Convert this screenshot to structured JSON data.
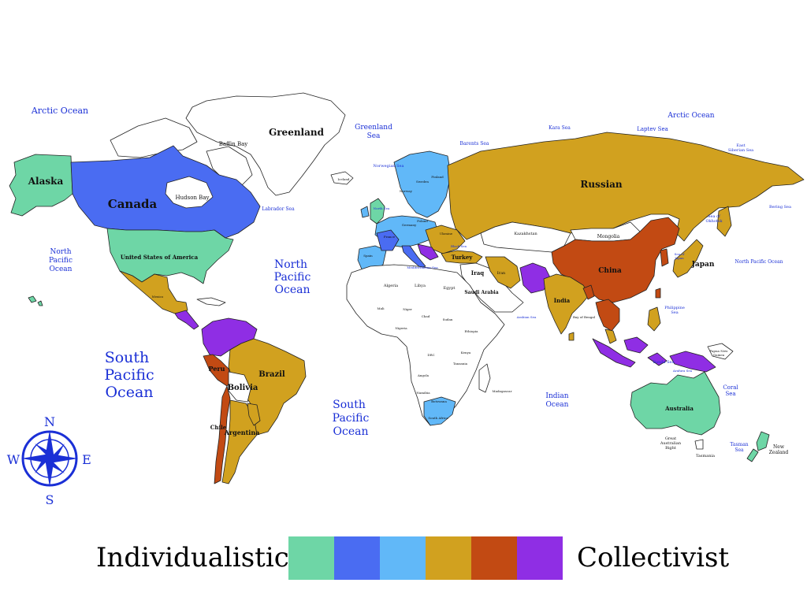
{
  "colors": {
    "individualistic_1": "#6ed6a6",
    "individualistic_2": "#4a6cf2",
    "individualistic_3": "#61b8f8",
    "collectivist_1": "#d1a11f",
    "collectivist_2": "#c24a13",
    "collectivist_3": "#8f2ee4",
    "border": "#222222",
    "ocean_text": "#1a2fd6",
    "unclassified": "#ffffff"
  },
  "legend": {
    "left_label": "Individualistic",
    "right_label": "Collectivist",
    "scale_colors": [
      "#6ed6a6",
      "#4a6cf2",
      "#61b8f8",
      "#d1a11f",
      "#c24a13",
      "#8f2ee4"
    ]
  },
  "compass": {
    "n": "N",
    "s": "S",
    "e": "E",
    "w": "W"
  },
  "oceans": {
    "arctic_left": "Arctic Ocean",
    "arctic_right": "Arctic Ocean",
    "north_pacific_left": [
      "North",
      "Pacific",
      "Ocean"
    ],
    "north_pacific_center": [
      "North",
      "Pacific",
      "Ocean"
    ],
    "north_pacific_right": "North Pacific Ocean",
    "south_pacific_left": [
      "South",
      "Pacific",
      "Ocean"
    ],
    "south_pacific_center": [
      "South",
      "Pacific",
      "Ocean"
    ],
    "indian": [
      "Indian",
      "Ocean"
    ],
    "greenland_sea": [
      "Greenland",
      "Sea"
    ],
    "barents_sea": "Barents Sea",
    "kara_sea": "Kara Sea",
    "laptev_sea": "Laptev Sea",
    "east_siberian_sea": [
      "East",
      "Siberian Sea"
    ],
    "bering_sea": "Bering Sea",
    "sea_of_okhotsk": [
      "Sea of",
      "Okhotsk"
    ],
    "labrador_sea": "Labrador Sea",
    "baffin_bay": "Baffin Bay",
    "hudson_bay": "Hudson Bay",
    "norwegian_sea": "Norwegian Sea",
    "north_sea": "North Sea",
    "black_sea": "Black Sea",
    "mediterranean_sea": "Mediterranean Sea",
    "arabian_sea": "Arabian Sea",
    "bay_of_bengal": "Bay of Bengal",
    "philippine_sea": [
      "Philippine",
      "Sea"
    ],
    "sea_of_japan": [
      "Sea of",
      "Japan"
    ],
    "banda_sea": "Banda Sea",
    "arafura_sea": "Arafura Sea",
    "coral_sea": [
      "Coral",
      "Sea"
    ],
    "tasman_sea": [
      "Tasman",
      "Sea"
    ],
    "great_australian_bight": [
      "Great",
      "Australian",
      "Bight"
    ]
  },
  "countries": {
    "alaska": "Alaska",
    "canada": "Canada",
    "usa": "United States of America",
    "greenland": "Greenland",
    "iceland": "Iceland",
    "mexico": "Mexico",
    "brazil": "Brazil",
    "bolivia": "Bolivia",
    "peru": "Peru",
    "chile": "Chile",
    "argentina": "Argentina",
    "russian": "Russian",
    "kazakhstan": "Kazakhstan",
    "mongolia": "Mongolia",
    "china": "China",
    "japan": "Japan",
    "india": "India",
    "iran": "Iran",
    "iraq": "Iraq",
    "turkey": "Turkey",
    "saudi_arabia": "Saudi Arabia",
    "egypt": "Egypt",
    "libya": "Libya",
    "algeria": "Algeria",
    "mali": "Mali",
    "niger": "Niger",
    "chad": "Chad",
    "sudan": "Sudan",
    "ethiopia": "Ethiopia",
    "drc": "DRC",
    "angola": "Angola",
    "namibia": "Namibia",
    "botswana": "Botswana",
    "south_africa": "South Africa",
    "madagascar": "Madagascar",
    "tanzania": "Tanzania",
    "kenya": "Kenya",
    "nigeria": "Nigeria",
    "germany": "Germany",
    "france": "France",
    "spain": "Spain",
    "poland": "Poland",
    "sweden": "Sweden",
    "finland": "Finland",
    "norway": "Norway",
    "ukraine": "Ukraine",
    "australia": "Australia",
    "new_zealand": [
      "New",
      "Zealand"
    ],
    "tasmania": "Tasmania",
    "papua_new_guinea": [
      "Papua New",
      "Guinea"
    ]
  }
}
